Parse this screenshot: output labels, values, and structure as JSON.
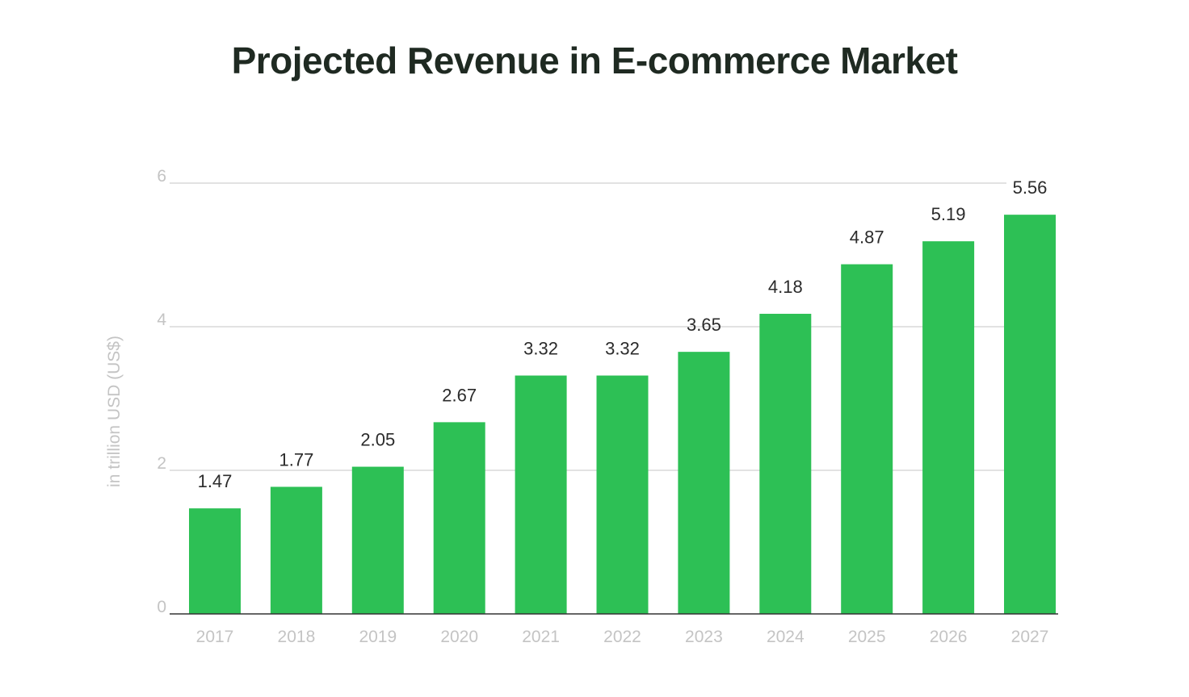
{
  "chart_data": {
    "type": "bar",
    "title": "Projected Revenue in E-commerce Market",
    "ylabel": "in trillion USD (US$)",
    "xlabel": "",
    "categories": [
      "2017",
      "2018",
      "2019",
      "2020",
      "2021",
      "2022",
      "2023",
      "2024",
      "2025",
      "2026",
      "2027"
    ],
    "values": [
      1.47,
      1.77,
      2.05,
      2.67,
      3.32,
      3.32,
      3.65,
      4.18,
      4.87,
      5.19,
      5.56
    ],
    "value_labels": [
      "1.47",
      "1.77",
      "2.05",
      "2.67",
      "3.32",
      "3.32",
      "3.65",
      "4.18",
      "4.87",
      "5.19",
      "5.56"
    ],
    "ylim": [
      0,
      6
    ],
    "yticks": [
      "0",
      "2",
      "4",
      "6"
    ],
    "grid": true,
    "legend": "none",
    "colors": {
      "bar": "#2dc055",
      "grid": "#d9d9d9",
      "axis": "#333333"
    }
  }
}
